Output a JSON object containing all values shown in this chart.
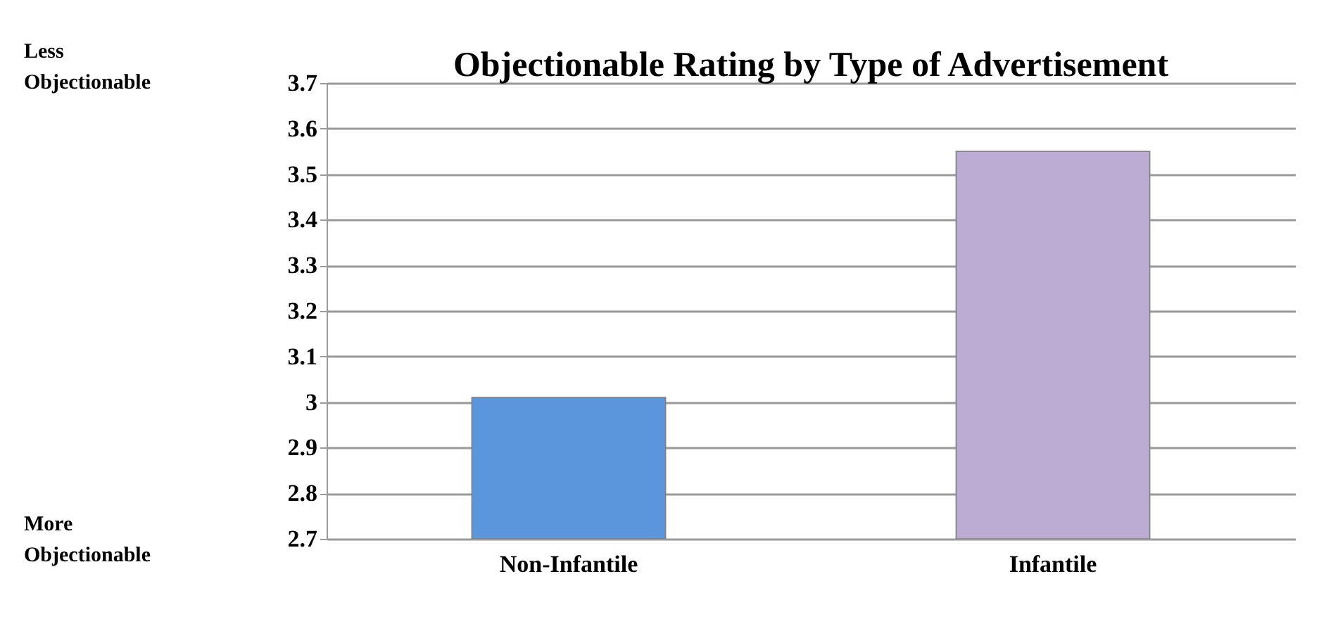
{
  "chart_data": {
    "type": "bar",
    "title": "Objectionable Rating by Type of Advertisement",
    "categories": [
      "Non-Infantile",
      "Infantile"
    ],
    "values": [
      3.01,
      3.55
    ],
    "colors": [
      "#5b96dc",
      "#bcabd3"
    ],
    "ylim": [
      2.7,
      3.7
    ],
    "yticks": [
      {
        "value": 2.7,
        "label": "2.7"
      },
      {
        "value": 2.8,
        "label": "2.8"
      },
      {
        "value": 2.9,
        "label": "2.9"
      },
      3,
      {
        "value": 3.1,
        "label": "3.1"
      },
      {
        "value": 3.2,
        "label": "3.2"
      },
      {
        "value": 3.3,
        "label": "3.3"
      },
      {
        "value": 3.4,
        "label": "3.4"
      },
      {
        "value": 3.5,
        "label": "3.5"
      },
      {
        "value": 3.6,
        "label": "3.6"
      },
      {
        "value": 3.7,
        "label": "3.7"
      }
    ],
    "grid": "y",
    "annotations": [
      "Less Objectionable",
      "More Objectionable"
    ]
  }
}
